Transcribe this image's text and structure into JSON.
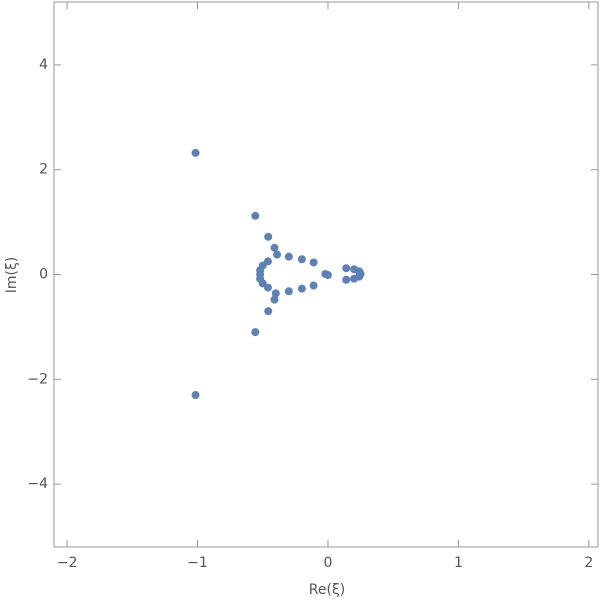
{
  "chart_data": {
    "type": "scatter",
    "xlabel": "Re(ξ)",
    "ylabel": "Im(ξ)",
    "color": "#5e81b5",
    "xlim": [
      -2.1,
      2.07
    ],
    "ylim": [
      -5.2,
      5.2
    ],
    "xticks": [
      {
        "value": -2,
        "label": "−2"
      },
      {
        "value": -1,
        "label": "−1"
      },
      0,
      1,
      2
    ],
    "yticks": [
      {
        "value": -4,
        "label": "−4"
      },
      {
        "value": -2,
        "label": "−2"
      },
      0,
      2,
      4
    ],
    "x": [
      -1.015,
      -1.015,
      -0.557,
      -0.557,
      -0.458,
      -0.458,
      -0.41,
      -0.41,
      -0.39,
      -0.4,
      -0.3,
      -0.3,
      -0.2,
      -0.2,
      -0.11,
      -0.11,
      -0.46,
      -0.46,
      -0.5,
      -0.5,
      -0.52,
      -0.52,
      -0.52,
      -0.02,
      0.0,
      0.14,
      0.14,
      0.2,
      0.2,
      0.24,
      0.24,
      0.25
    ],
    "values": [
      2.32,
      -2.3,
      1.12,
      -1.1,
      0.72,
      -0.7,
      0.51,
      -0.48,
      0.38,
      -0.36,
      0.34,
      -0.32,
      0.29,
      -0.27,
      0.23,
      -0.21,
      0.25,
      -0.25,
      0.17,
      -0.17,
      0.08,
      -0.08,
      0.0,
      0.01,
      -0.01,
      0.12,
      -0.1,
      0.1,
      -0.08,
      0.06,
      -0.04,
      0.01
    ]
  }
}
